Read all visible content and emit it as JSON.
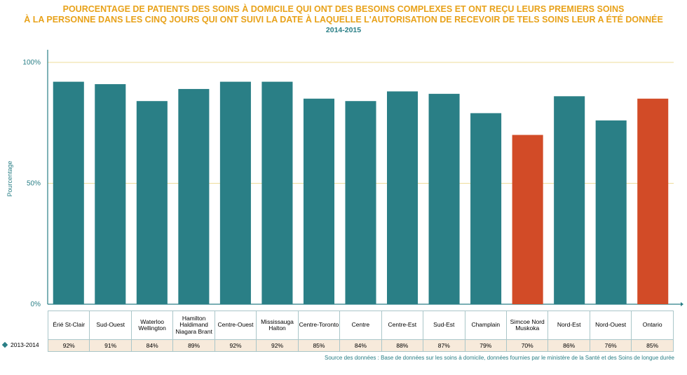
{
  "chart_data": {
    "type": "bar",
    "title": "POURCENTAGE DE PATIENTS DES SOINS À DOMICILE QUI ONT DES BESOINS COMPLEXES ET ONT REÇU LEURS PREMIERS SOINS",
    "title_line2": "À LA PERSONNE DANS LES CINQ JOURS QUI ONT SUIVI LA DATE À LAQUELLE L'AUTORISATION DE RECEVOIR DE TELS SOINS LEUR A ÉTÉ DONNÉE",
    "subtitle": "2014-2015",
    "ylabel": "Pourcentage",
    "xlabel": "",
    "ylim": [
      0,
      100
    ],
    "y_ticks": [
      "0%",
      "50%",
      "100%"
    ],
    "y_tick_values": [
      0,
      50,
      100
    ],
    "grid": true,
    "categories": [
      "Érié St-Clair",
      "Sud-Ouest",
      "Waterloo Wellington",
      "Hamilton Haldimand Niagara Brant",
      "Centre-Ouest",
      "Mississauga Halton",
      "Centre-Toronto",
      "Centre",
      "Centre-Est",
      "Sud-Est",
      "Champlain",
      "Simcoe Nord Muskoka",
      "Nord-Est",
      "Nord-Ouest",
      "Ontario"
    ],
    "values": [
      92,
      91,
      84,
      89,
      92,
      92,
      85,
      84,
      88,
      87,
      79,
      70,
      86,
      76,
      85
    ],
    "value_labels": [
      "92%",
      "91%",
      "84%",
      "89%",
      "92%",
      "92%",
      "85%",
      "84%",
      "88%",
      "87%",
      "79%",
      "70%",
      "86%",
      "76%",
      "85%"
    ],
    "highlighted": [
      "Simcoe Nord Muskoka",
      "Ontario"
    ],
    "series_name": "2013-2014",
    "colors": {
      "bar": "#2a7f86",
      "highlight": "#d24b27",
      "grid": "#eedc9a",
      "axis": "#2a7f86"
    }
  },
  "source": "Source des données : Base de données sur les soins à domicile, données fournies par le ministère de la Santé et des Soins de longue durée"
}
